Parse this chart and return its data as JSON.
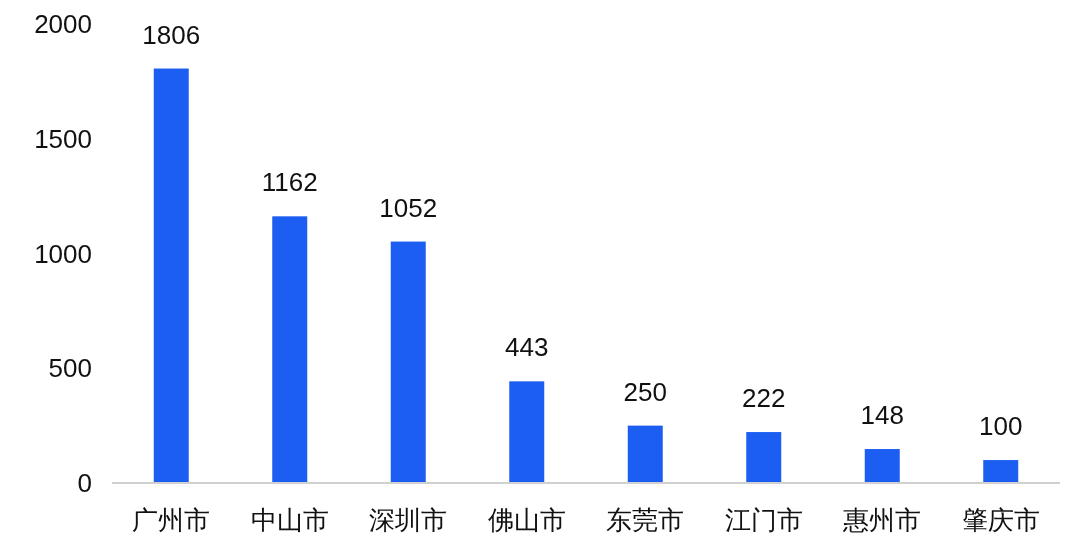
{
  "chart_data": {
    "type": "bar",
    "categories": [
      "广州市",
      "中山市",
      "深圳市",
      "佛山市",
      "东莞市",
      "江门市",
      "惠州市",
      "肇庆市"
    ],
    "values": [
      1806,
      1162,
      1052,
      443,
      250,
      222,
      148,
      100
    ],
    "color": "#1d5ef2",
    "ylim": [
      0,
      2000
    ],
    "yticks": [
      0,
      500,
      1000,
      1500,
      2000
    ],
    "data_labels": true
  }
}
